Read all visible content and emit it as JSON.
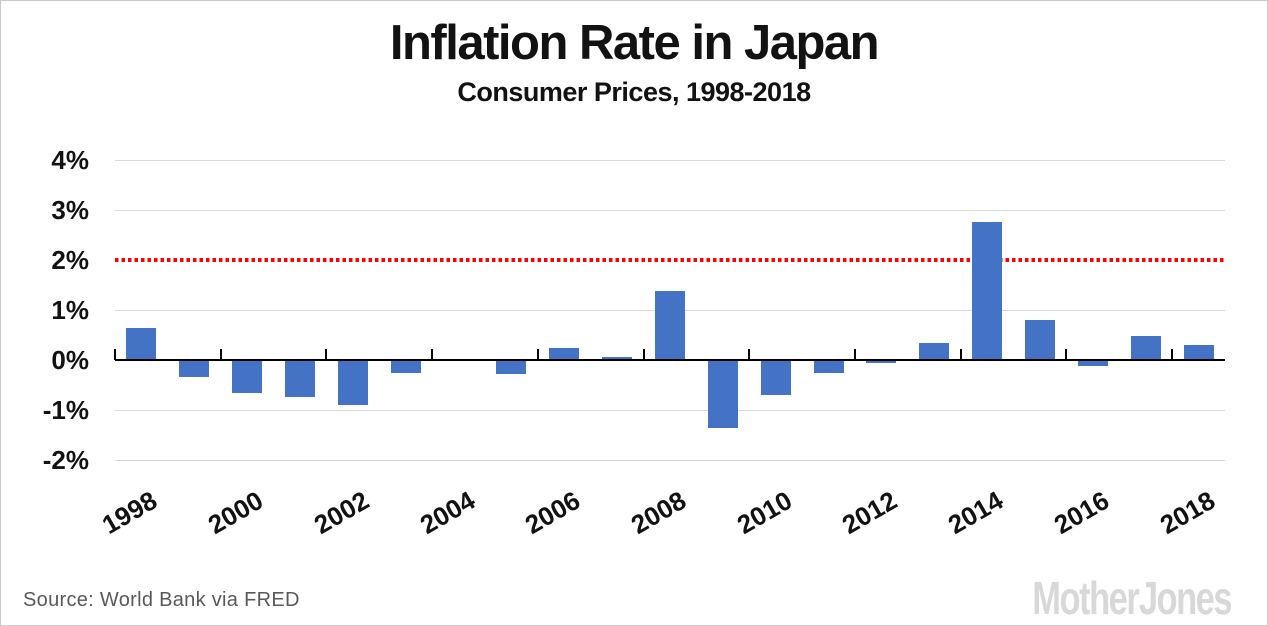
{
  "header": {
    "title": "Inflation Rate in Japan",
    "subtitle": "Consumer Prices, 1998-2018"
  },
  "footer": {
    "source": "Source: World Bank via FRED",
    "logo_text": "Mother Jones"
  },
  "chart_data": {
    "type": "bar",
    "title": "Inflation Rate in Japan",
    "subtitle": "Consumer Prices, 1998-2018",
    "categories": [
      "1998",
      "1999",
      "2000",
      "2001",
      "2002",
      "2003",
      "2004",
      "2005",
      "2006",
      "2007",
      "2008",
      "2009",
      "2010",
      "2011",
      "2012",
      "2013",
      "2014",
      "2015",
      "2016",
      "2017",
      "2018"
    ],
    "values": [
      0.65,
      -0.34,
      -0.66,
      -0.73,
      -0.9,
      -0.25,
      -0.02,
      -0.28,
      0.25,
      0.06,
      1.38,
      -1.35,
      -0.7,
      -0.26,
      -0.05,
      0.35,
      2.76,
      0.8,
      -0.12,
      0.48,
      0.3
    ],
    "xlabel": "",
    "ylabel": "",
    "ylim": [
      -2,
      4
    ],
    "y_tick_values": [
      4,
      3,
      2,
      1,
      0,
      -1,
      -2
    ],
    "y_tick_labels": [
      "4%",
      "3%",
      "2%",
      "1%",
      "0%",
      "-1%",
      "-2%"
    ],
    "x_tick_labels": [
      "1998",
      "2000",
      "2002",
      "2004",
      "2006",
      "2008",
      "2010",
      "2012",
      "2014",
      "2016",
      "2018"
    ],
    "x_tick_every": 2,
    "grid": true,
    "legend": "none",
    "bar_color": "#4472C4",
    "reference_line": {
      "value": 2,
      "color": "#FF0000",
      "style": "dotted"
    }
  },
  "colors": {
    "bar": "#4472C4",
    "target_line": "#FF0000",
    "gridline": "#D9D9D9",
    "axis": "#000000",
    "text": "#121212",
    "source_text": "#595959",
    "logo": "#D8D8D8",
    "frame_border": "#C9C9C9",
    "background": "#FFFFFF"
  }
}
